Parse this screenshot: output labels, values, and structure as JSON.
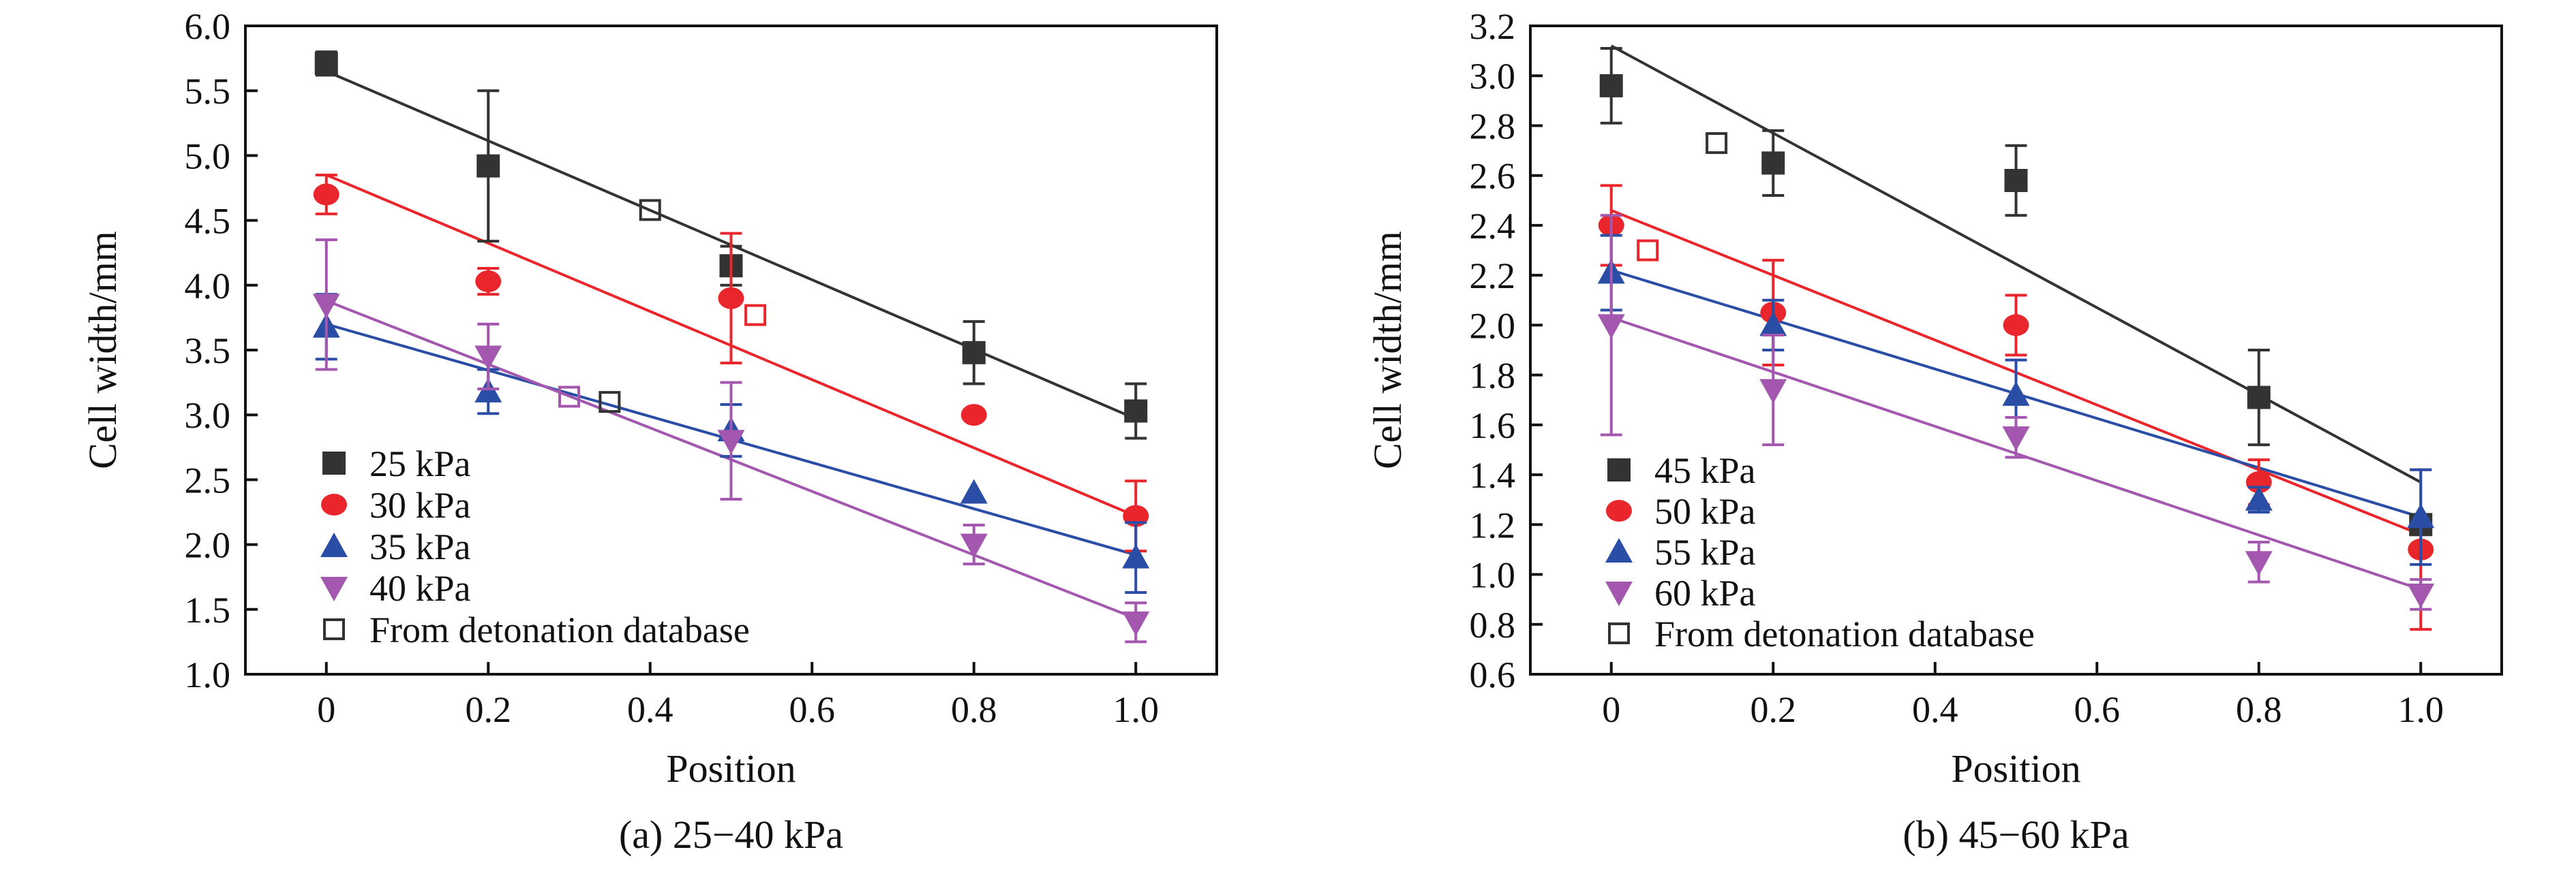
{
  "chart_data": [
    {
      "type": "scatter",
      "caption": "(a) 25−40 kPa",
      "xlabel": "Position",
      "ylabel": "Cell width/mm",
      "xlim": [
        -0.1,
        1.1
      ],
      "ylim": [
        1.0,
        6.0
      ],
      "xticks": [
        0,
        0.2,
        0.4,
        0.6,
        0.8,
        1.0
      ],
      "xtick_labels": [
        "0",
        "0.2",
        "0.4",
        "0.6",
        "0.8",
        "1.0"
      ],
      "yticks": [
        1.0,
        1.5,
        2.0,
        2.5,
        3.0,
        3.5,
        4.0,
        4.5,
        5.0,
        5.5,
        6.0
      ],
      "ytick_labels": [
        "1.0",
        "1.5",
        "2.0",
        "2.5",
        "3.0",
        "3.5",
        "4.0",
        "4.5",
        "5.0",
        "5.5",
        "6.0"
      ],
      "grid": false,
      "legend_position": "bottom-left",
      "series": [
        {
          "name": "25 kPa",
          "color": "#333333",
          "marker": "square",
          "x": [
            0,
            0.2,
            0.5,
            0.8,
            1.0
          ],
          "y": [
            5.71,
            4.92,
            4.15,
            3.48,
            3.03
          ],
          "err": [
            0.09,
            0.58,
            0.15,
            0.24,
            0.21
          ],
          "fit": {
            "x": [
              0,
              1.0
            ],
            "y": [
              5.65,
              2.97
            ]
          }
        },
        {
          "name": "30 kPa",
          "color": "#e8262b",
          "marker": "circle",
          "x": [
            0,
            0.2,
            0.5,
            0.8,
            1.0
          ],
          "y": [
            4.7,
            4.03,
            3.9,
            3.0,
            2.22
          ],
          "err": [
            0.15,
            0.1,
            0.5,
            0.0,
            0.27
          ],
          "fit": {
            "x": [
              0,
              1.0
            ],
            "y": [
              4.85,
              2.22
            ]
          }
        },
        {
          "name": "35 kPa",
          "color": "#2a4ea6",
          "marker": "triangle-up",
          "x": [
            0,
            0.2,
            0.5,
            0.8,
            1.0
          ],
          "y": [
            3.68,
            3.18,
            2.88,
            2.4,
            1.9
          ],
          "err": [
            0.25,
            0.17,
            0.2,
            0.0,
            0.27
          ],
          "fit": {
            "x": [
              0,
              1.0
            ],
            "y": [
              3.7,
              1.92
            ]
          }
        },
        {
          "name": "40 kPa",
          "color": "#a357ae",
          "marker": "triangle-down",
          "x": [
            0,
            0.2,
            0.5,
            0.8,
            1.0
          ],
          "y": [
            3.85,
            3.45,
            2.8,
            2.0,
            1.4
          ],
          "err": [
            0.5,
            0.25,
            0.45,
            0.15,
            0.15
          ],
          "fit": {
            "x": [
              0,
              1.0
            ],
            "y": [
              3.88,
              1.43
            ]
          }
        },
        {
          "name": "From detonation database",
          "color": "#333333",
          "marker": "open-square",
          "points": [
            {
              "x": 0.4,
              "y": 4.58,
              "color": "#333333"
            },
            {
              "x": 0.35,
              "y": 3.1,
              "color": "#333333"
            },
            {
              "x": 0.3,
              "y": 3.14,
              "color": "#a357ae"
            },
            {
              "x": 0.53,
              "y": 3.77,
              "color": "#e8262b"
            }
          ]
        }
      ]
    },
    {
      "type": "scatter",
      "caption": "(b) 45−60 kPa",
      "xlabel": "Position",
      "ylabel": "Cell width/mm",
      "xlim": [
        -0.1,
        1.1
      ],
      "ylim": [
        0.6,
        3.2
      ],
      "xticks": [
        0,
        0.2,
        0.4,
        0.6,
        0.8,
        1.0
      ],
      "xtick_labels": [
        "0",
        "0.2",
        "0.4",
        "0.6",
        "0.8",
        "1.0"
      ],
      "yticks": [
        0.6,
        0.8,
        1.0,
        1.2,
        1.4,
        1.6,
        1.8,
        2.0,
        2.2,
        2.4,
        2.6,
        2.8,
        3.0,
        3.2
      ],
      "ytick_labels": [
        "0.6",
        "0.8",
        "1.0",
        "1.2",
        "1.4",
        "1.6",
        "1.8",
        "2.0",
        "2.2",
        "2.4",
        "2.6",
        "2.8",
        "3.0",
        "3.2"
      ],
      "grid": false,
      "legend_position": "bottom-left",
      "series": [
        {
          "name": "45 kPa",
          "color": "#333333",
          "marker": "square",
          "x": [
            0,
            0.2,
            0.5,
            0.8,
            1.0
          ],
          "y": [
            2.96,
            2.65,
            2.58,
            1.71,
            1.2
          ],
          "err": [
            0.15,
            0.13,
            0.14,
            0.19,
            0.0
          ],
          "fit": {
            "x": [
              0,
              1.0
            ],
            "y": [
              3.12,
              1.37
            ]
          }
        },
        {
          "name": "50 kPa",
          "color": "#e8262b",
          "marker": "circle",
          "x": [
            0,
            0.2,
            0.5,
            0.8,
            1.0
          ],
          "y": [
            2.4,
            2.05,
            2.0,
            1.37,
            1.1
          ],
          "err": [
            0.16,
            0.21,
            0.12,
            0.09,
            0.32
          ],
          "fit": {
            "x": [
              0,
              1.0
            ],
            "y": [
              2.46,
              1.16
            ]
          }
        },
        {
          "name": "55 kPa",
          "color": "#2a4ea6",
          "marker": "triangle-up",
          "x": [
            0,
            0.2,
            0.5,
            0.8,
            1.0
          ],
          "y": [
            2.21,
            2.0,
            1.72,
            1.3,
            1.23
          ],
          "err": [
            0.15,
            0.1,
            0.14,
            0.05,
            0.19
          ],
          "fit": {
            "x": [
              0,
              1.0
            ],
            "y": [
              2.22,
              1.23
            ]
          }
        },
        {
          "name": "60 kPa",
          "color": "#a357ae",
          "marker": "triangle-down",
          "x": [
            0,
            0.2,
            0.5,
            0.8,
            1.0
          ],
          "y": [
            2.0,
            1.74,
            1.55,
            1.05,
            0.92
          ],
          "err": [
            0.44,
            0.22,
            0.08,
            0.08,
            0.06
          ],
          "fit": {
            "x": [
              0,
              1.0
            ],
            "y": [
              2.03,
              0.94
            ]
          }
        },
        {
          "name": "From detonation database",
          "color": "#333333",
          "marker": "open-square",
          "points": [
            {
              "x": 0.13,
              "y": 2.73,
              "color": "#333333"
            },
            {
              "x": 0.045,
              "y": 2.3,
              "color": "#e8262b"
            }
          ]
        }
      ]
    }
  ]
}
